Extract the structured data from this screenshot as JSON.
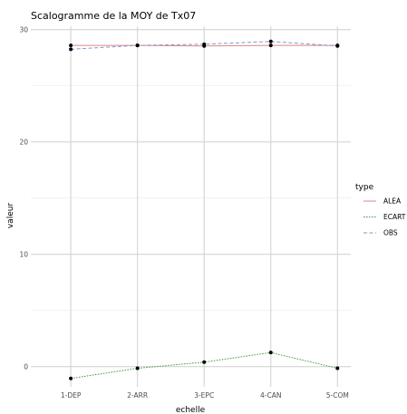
{
  "chart_data": {
    "type": "line",
    "title": "Scalogramme de la MOY de Tx07",
    "xlabel": "echelle",
    "ylabel": "valeur",
    "categories": [
      "1-DEP",
      "2-ARR",
      "3-EPC",
      "4-CAN",
      "5-COM"
    ],
    "ylim": [
      -1.8,
      30.3
    ],
    "yticks": [
      0,
      10,
      20,
      30
    ],
    "grid": true,
    "legend": {
      "title": "type",
      "placement": "right"
    },
    "series": [
      {
        "name": "ALEA",
        "color": "#e08589",
        "dash": "solid",
        "values": [
          28.6,
          28.6,
          28.55,
          28.6,
          28.6
        ]
      },
      {
        "name": "ECART",
        "color": "#3a9a3a",
        "dash": "dotted",
        "values": [
          -1.05,
          -0.15,
          0.4,
          1.25,
          -0.15
        ]
      },
      {
        "name": "OBS",
        "color": "#7f9acb",
        "dash": "dashed",
        "values": [
          28.25,
          28.6,
          28.7,
          28.95,
          28.55
        ]
      }
    ]
  }
}
